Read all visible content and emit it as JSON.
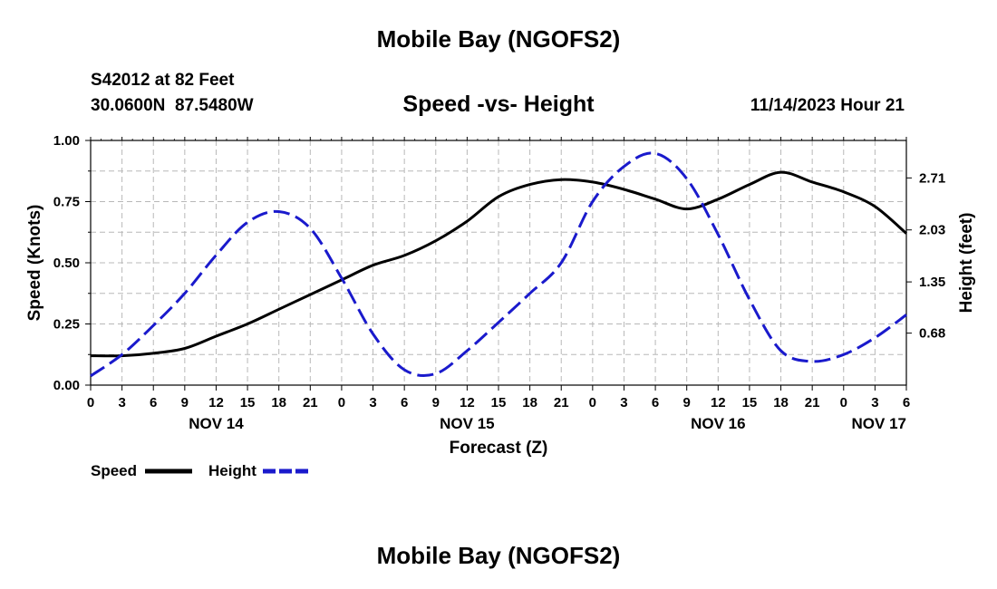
{
  "chart_data": {
    "type": "line",
    "title": "Mobile Bay (NGOFS2)",
    "subtitle": "Speed -vs- Height",
    "station_line1": "S42012 at 82 Feet",
    "station_line2": "30.0600N  87.5480W",
    "timestamp": "11/14/2023 Hour 21",
    "xlabel": "Forecast (Z)",
    "ylabel_left": "Speed (Knots)",
    "ylabel_right": "Height (feet)",
    "footer_title": "Mobile Bay (NGOFS2)",
    "x_unit": "hours since NOV 14 00Z",
    "xlim": [
      0,
      78
    ],
    "x_ticks": [
      {
        "hour": 0,
        "label": "0"
      },
      {
        "hour": 3,
        "label": "3"
      },
      {
        "hour": 6,
        "label": "6"
      },
      {
        "hour": 9,
        "label": "9"
      },
      {
        "hour": 12,
        "label": "12"
      },
      {
        "hour": 15,
        "label": "15"
      },
      {
        "hour": 18,
        "label": "18"
      },
      {
        "hour": 21,
        "label": "21"
      },
      {
        "hour": 24,
        "label": "0"
      },
      {
        "hour": 27,
        "label": "3"
      },
      {
        "hour": 30,
        "label": "6"
      },
      {
        "hour": 33,
        "label": "9"
      },
      {
        "hour": 36,
        "label": "12"
      },
      {
        "hour": 39,
        "label": "15"
      },
      {
        "hour": 42,
        "label": "18"
      },
      {
        "hour": 45,
        "label": "21"
      },
      {
        "hour": 48,
        "label": "0"
      },
      {
        "hour": 51,
        "label": "3"
      },
      {
        "hour": 54,
        "label": "6"
      },
      {
        "hour": 57,
        "label": "9"
      },
      {
        "hour": 60,
        "label": "12"
      },
      {
        "hour": 63,
        "label": "15"
      },
      {
        "hour": 66,
        "label": "18"
      },
      {
        "hour": 69,
        "label": "21"
      },
      {
        "hour": 72,
        "label": "0"
      },
      {
        "hour": 75,
        "label": "3"
      },
      {
        "hour": 78,
        "label": "6"
      }
    ],
    "day_labels": [
      {
        "hour": 12,
        "label": "NOV 14"
      },
      {
        "hour": 36,
        "label": "NOV 15"
      },
      {
        "hour": 60,
        "label": "NOV 16"
      },
      {
        "hour": 78,
        "label": "NOV 17",
        "anchor": "end"
      }
    ],
    "ylim_left": [
      0,
      1
    ],
    "y_ticks_left": [
      {
        "value": 0,
        "label": "0.00"
      },
      {
        "value": 0.25,
        "label": "0.25"
      },
      {
        "value": 0.5,
        "label": "0.50"
      },
      {
        "value": 0.75,
        "label": "0.75"
      },
      {
        "value": 1,
        "label": "1.00"
      }
    ],
    "ylim_right": [
      0,
      3.2
    ],
    "y_ticks_right": [
      {
        "value": 0.68,
        "label": "0.68"
      },
      {
        "value": 1.35,
        "label": "1.35"
      },
      {
        "value": 2.03,
        "label": "2.03"
      },
      {
        "value": 2.71,
        "label": "2.71"
      }
    ],
    "grid": true,
    "legend_position": "bottom-left",
    "series": [
      {
        "name": "Speed",
        "axis": "left",
        "color": "#000000",
        "style": "solid",
        "x": [
          0,
          3,
          6,
          9,
          12,
          15,
          18,
          21,
          24,
          27,
          30,
          33,
          36,
          39,
          42,
          45,
          48,
          51,
          54,
          57,
          60,
          63,
          66,
          69,
          72,
          75,
          78
        ],
        "values": [
          0.12,
          0.12,
          0.13,
          0.15,
          0.2,
          0.25,
          0.31,
          0.37,
          0.43,
          0.49,
          0.53,
          0.59,
          0.67,
          0.77,
          0.82,
          0.84,
          0.83,
          0.8,
          0.76,
          0.72,
          0.76,
          0.82,
          0.87,
          0.83,
          0.79,
          0.73,
          0.62
        ]
      },
      {
        "name": "Height",
        "axis": "right",
        "color": "#1a1acc",
        "style": "dashed",
        "x": [
          0,
          3,
          6,
          9,
          12,
          15,
          18,
          21,
          24,
          27,
          30,
          33,
          36,
          39,
          42,
          45,
          48,
          51,
          54,
          57,
          60,
          63,
          66,
          69,
          72,
          75,
          78
        ],
        "values": [
          0.12,
          0.4,
          0.78,
          1.2,
          1.7,
          2.13,
          2.27,
          2.05,
          1.4,
          0.67,
          0.2,
          0.15,
          0.45,
          0.82,
          1.2,
          1.6,
          2.4,
          2.86,
          3.03,
          2.7,
          1.97,
          1.12,
          0.45,
          0.31,
          0.4,
          0.62,
          0.92
        ]
      }
    ]
  }
}
